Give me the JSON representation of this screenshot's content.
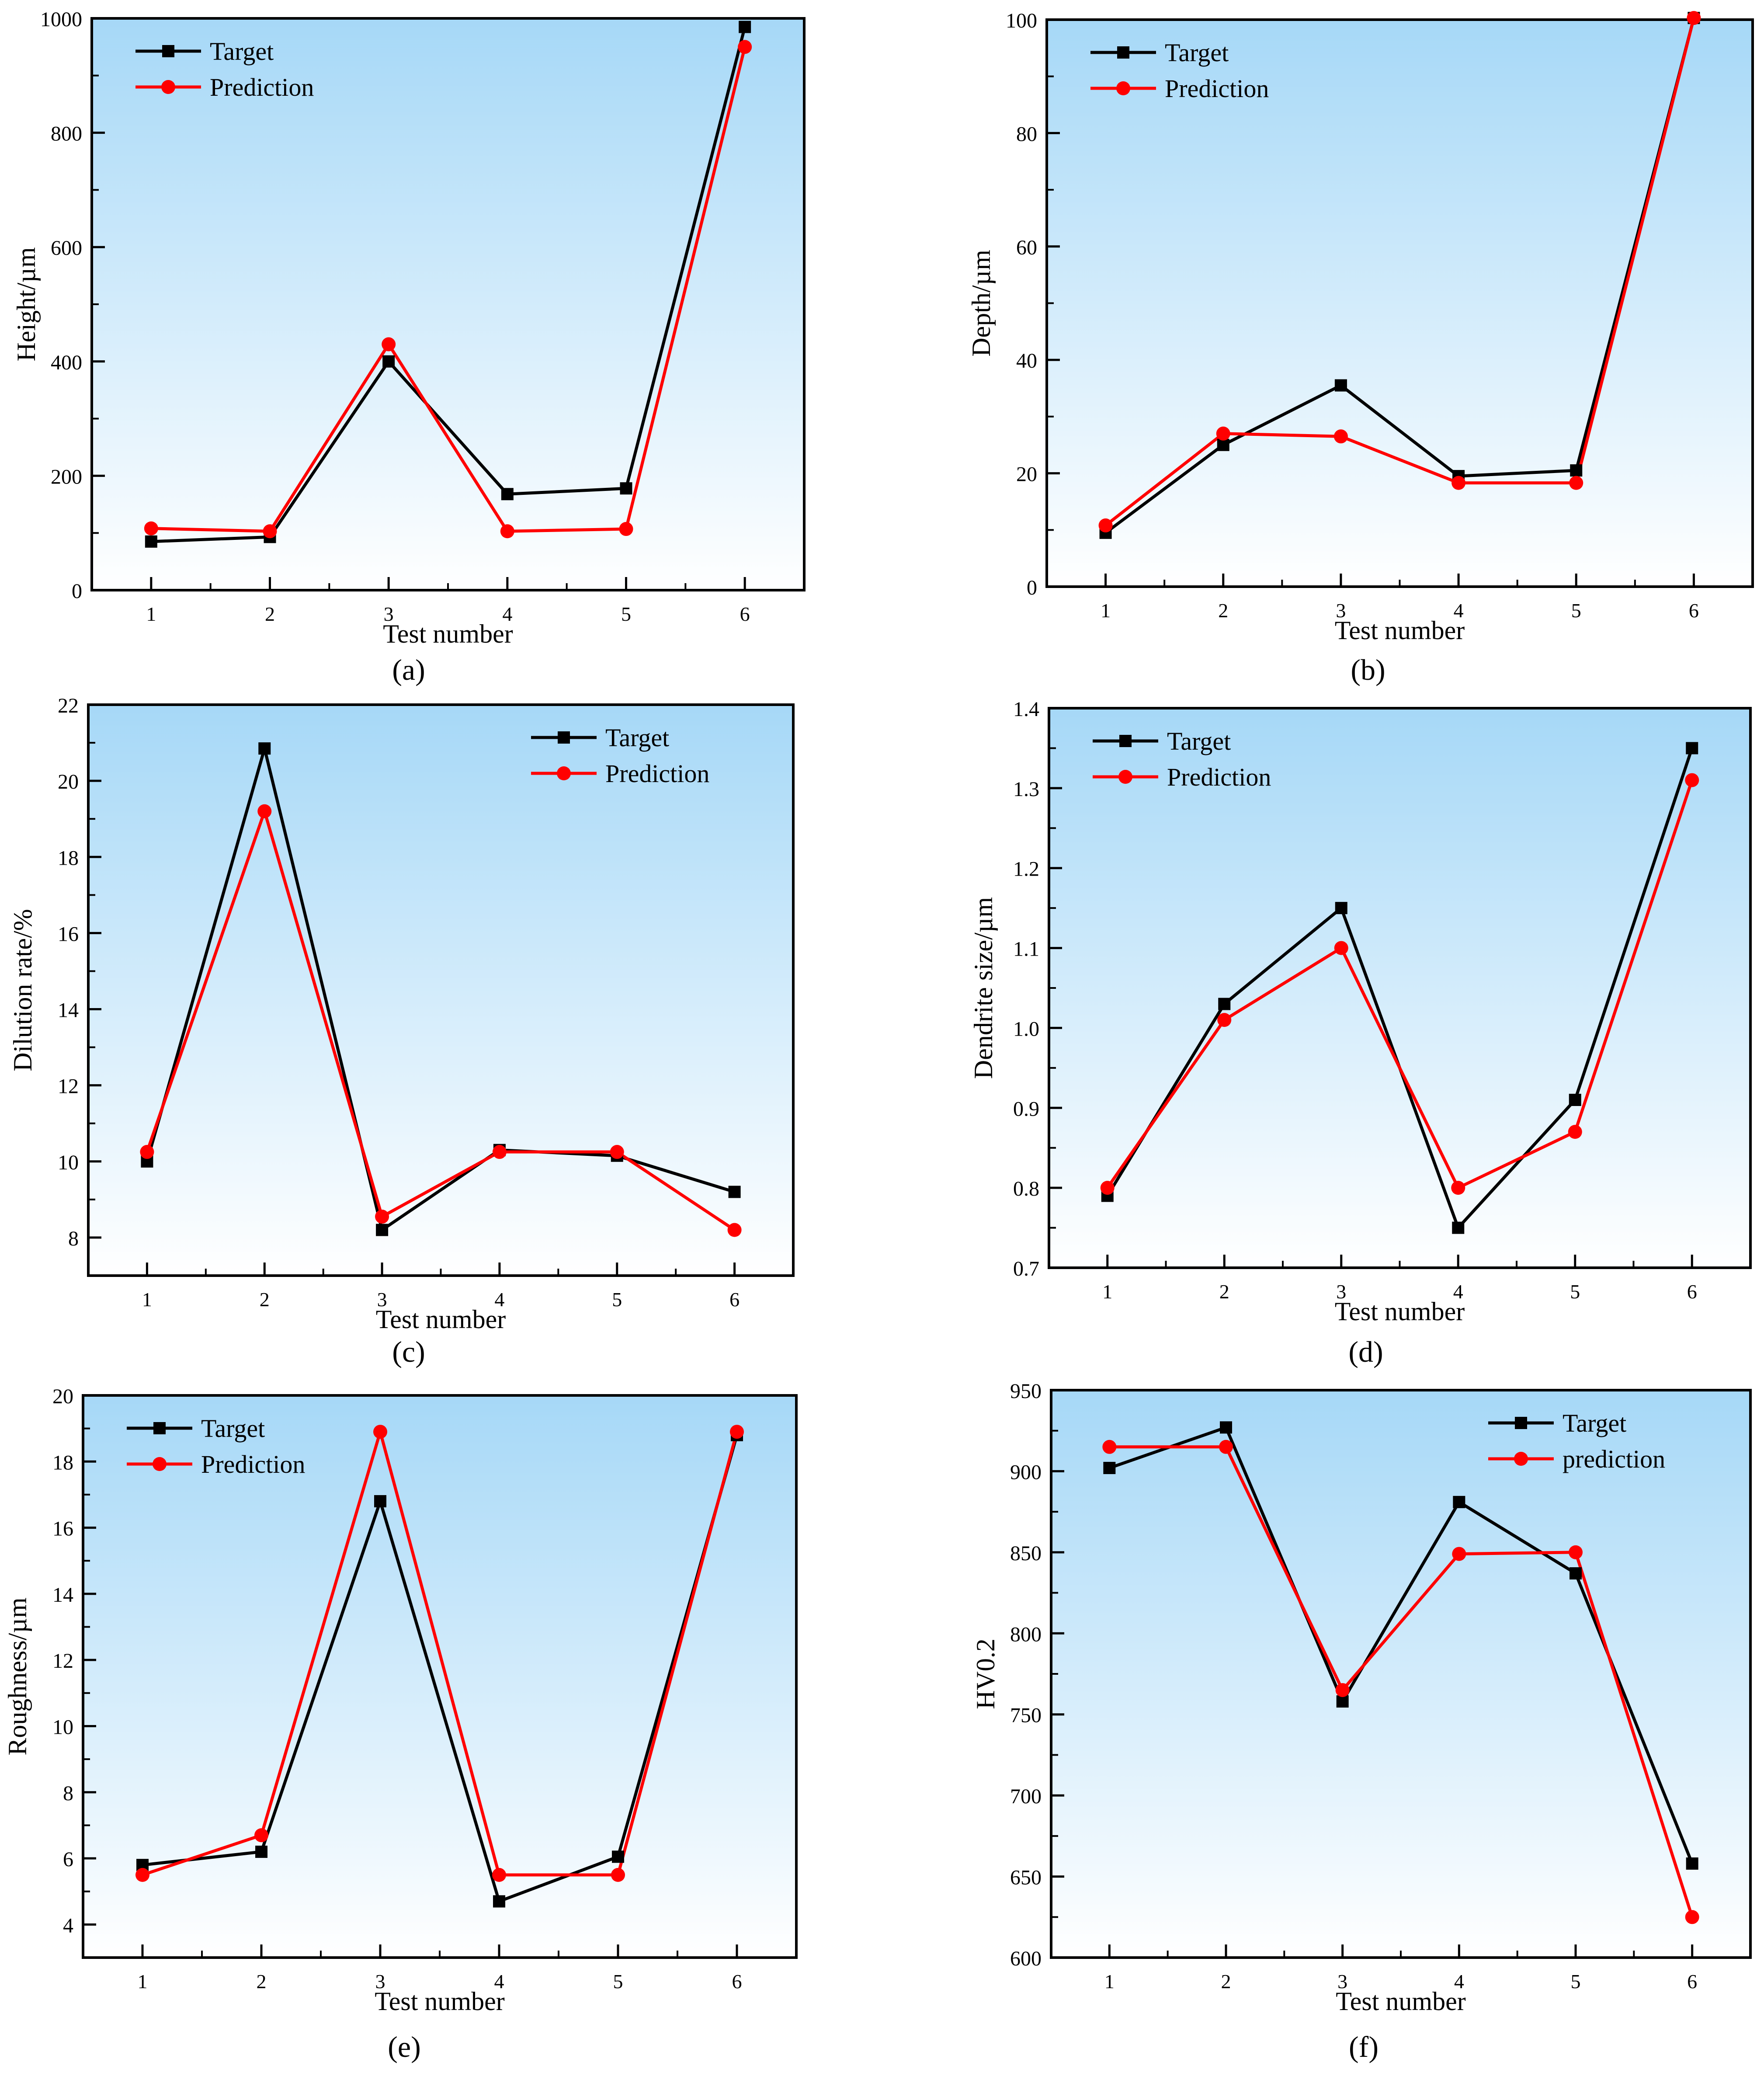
{
  "chart_data": [
    {
      "type": "line",
      "caption": "(a)",
      "xlabel": "Test number",
      "ylabel": "Height/µm",
      "xlim": [
        0.5,
        6.5
      ],
      "ylim": [
        0,
        1000
      ],
      "x_ticks": [
        1,
        2,
        3,
        4,
        5,
        6
      ],
      "y_ticks": [
        0,
        200,
        400,
        600,
        800,
        1000
      ],
      "y_tick_labels": [
        "0",
        "200",
        "400",
        "600",
        "800",
        "1000"
      ],
      "legend_position": "top-left",
      "categories": [
        1,
        2,
        3,
        4,
        5,
        6
      ],
      "series": [
        {
          "name": "Target",
          "color": "#000000",
          "marker": "square",
          "values": [
            85,
            93,
            400,
            168,
            178,
            985
          ]
        },
        {
          "name": "Prediction",
          "color": "#ff0000",
          "marker": "circle",
          "values": [
            108,
            103,
            430,
            103,
            107,
            950
          ]
        }
      ]
    },
    {
      "type": "line",
      "caption": "(b)",
      "xlabel": "Test number",
      "ylabel": "Depth/µm",
      "xlim": [
        0.5,
        6.5
      ],
      "ylim": [
        0,
        100
      ],
      "x_ticks": [
        1,
        2,
        3,
        4,
        5,
        6
      ],
      "y_ticks": [
        0,
        20,
        40,
        60,
        80,
        100
      ],
      "y_tick_labels": [
        "0",
        "20",
        "40",
        "60",
        "80",
        "100"
      ],
      "legend_position": "top-left",
      "categories": [
        1,
        2,
        3,
        4,
        5,
        6
      ],
      "series": [
        {
          "name": "Target",
          "color": "#000000",
          "marker": "square",
          "values": [
            9.5,
            25,
            35.5,
            19.5,
            20.5,
            100.3
          ]
        },
        {
          "name": "Prediction",
          "color": "#ff0000",
          "marker": "circle",
          "values": [
            10.8,
            27,
            26.5,
            18.3,
            18.3,
            100.3
          ]
        }
      ]
    },
    {
      "type": "line",
      "caption": "(c)",
      "xlabel": "Test number",
      "ylabel": "Dilution rate/%",
      "xlim": [
        0.5,
        6.5
      ],
      "ylim": [
        7,
        22
      ],
      "x_ticks": [
        1,
        2,
        3,
        4,
        5,
        6
      ],
      "y_ticks": [
        8,
        10,
        12,
        14,
        16,
        18,
        20,
        22
      ],
      "y_tick_labels": [
        "8",
        "10",
        "12",
        "14",
        "16",
        "18",
        "20",
        "22"
      ],
      "legend_position": "top-right",
      "categories": [
        1,
        2,
        3,
        4,
        5,
        6
      ],
      "series": [
        {
          "name": "Target",
          "color": "#000000",
          "marker": "square",
          "values": [
            10.0,
            20.85,
            8.2,
            10.3,
            10.15,
            9.2
          ]
        },
        {
          "name": "Prediction",
          "color": "#ff0000",
          "marker": "circle",
          "values": [
            10.25,
            19.2,
            8.55,
            10.25,
            10.25,
            8.2
          ]
        }
      ]
    },
    {
      "type": "line",
      "caption": "(d)",
      "xlabel": "Test number",
      "ylabel": "Dendrite size/µm",
      "xlim": [
        0.5,
        6.5
      ],
      "ylim": [
        0.7,
        1.4
      ],
      "x_ticks": [
        1,
        2,
        3,
        4,
        5,
        6
      ],
      "y_ticks": [
        0.7,
        0.8,
        0.9,
        1.0,
        1.1,
        1.2,
        1.3,
        1.4
      ],
      "y_tick_labels": [
        "0.7",
        "0.8",
        "0.9",
        "1.0",
        "1.1",
        "1.2",
        "1.3",
        "1.4"
      ],
      "legend_position": "top-left",
      "categories": [
        1,
        2,
        3,
        4,
        5,
        6
      ],
      "series": [
        {
          "name": "Target",
          "color": "#000000",
          "marker": "square",
          "values": [
            0.79,
            1.03,
            1.15,
            0.75,
            0.91,
            1.35
          ]
        },
        {
          "name": "Prediction",
          "color": "#ff0000",
          "marker": "circle",
          "values": [
            0.8,
            1.01,
            1.1,
            0.8,
            0.87,
            1.31
          ]
        }
      ]
    },
    {
      "type": "line",
      "caption": "(e)",
      "xlabel": "Test number",
      "ylabel": "Roughness/µm",
      "xlim": [
        0.5,
        6.5
      ],
      "ylim": [
        3,
        20
      ],
      "x_ticks": [
        1,
        2,
        3,
        4,
        5,
        6
      ],
      "y_ticks": [
        4,
        6,
        8,
        10,
        12,
        14,
        16,
        18,
        20
      ],
      "y_tick_labels": [
        "4",
        "6",
        "8",
        "10",
        "12",
        "14",
        "16",
        "18",
        "20"
      ],
      "legend_position": "top-left",
      "categories": [
        1,
        2,
        3,
        4,
        5,
        6
      ],
      "series": [
        {
          "name": "Target",
          "color": "#000000",
          "marker": "square",
          "values": [
            5.8,
            6.2,
            16.8,
            4.7,
            6.05,
            18.8
          ]
        },
        {
          "name": "Prediction",
          "color": "#ff0000",
          "marker": "circle",
          "values": [
            5.5,
            6.7,
            18.9,
            5.5,
            5.5,
            18.9
          ]
        }
      ]
    },
    {
      "type": "line",
      "caption": "(f)",
      "xlabel": "Test number",
      "ylabel": "HV0.2",
      "xlim": [
        0.5,
        6.5
      ],
      "ylim": [
        600,
        950
      ],
      "x_ticks": [
        1,
        2,
        3,
        4,
        5,
        6
      ],
      "y_ticks": [
        600,
        650,
        700,
        750,
        800,
        850,
        900,
        950
      ],
      "y_tick_labels": [
        "600",
        "650",
        "700",
        "750",
        "800",
        "850",
        "900",
        "950"
      ],
      "legend_position": "top-right",
      "categories": [
        1,
        2,
        3,
        4,
        5,
        6
      ],
      "series": [
        {
          "name": "Target",
          "color": "#000000",
          "marker": "square",
          "values": [
            902,
            927,
            758,
            881,
            837,
            658
          ]
        },
        {
          "name": "prediction",
          "color": "#ff0000",
          "marker": "circle",
          "values": [
            915,
            915,
            765,
            849,
            850,
            625
          ]
        }
      ]
    }
  ]
}
